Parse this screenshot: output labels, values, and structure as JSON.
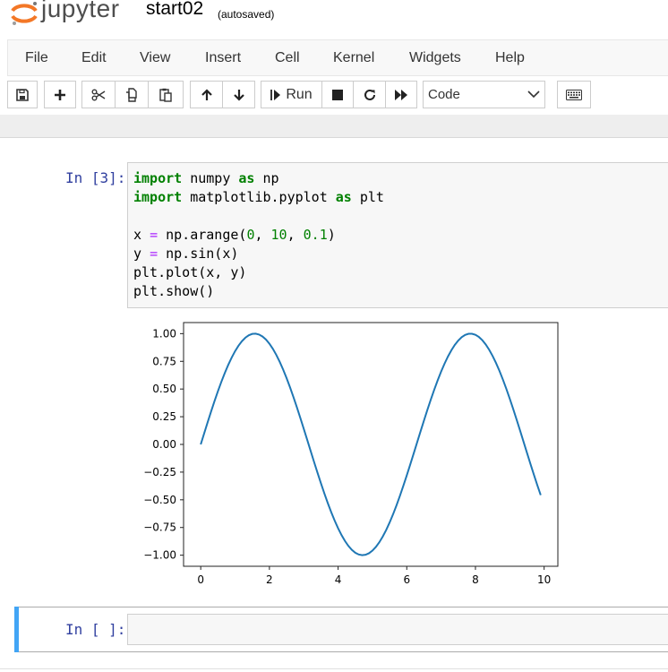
{
  "header": {
    "logo_text": "jupyter",
    "notebook_name": "start02",
    "autosave_status": "(autosaved)"
  },
  "menu": [
    "File",
    "Edit",
    "View",
    "Insert",
    "Cell",
    "Kernel",
    "Widgets",
    "Help"
  ],
  "toolbar": {
    "run_label": "Run",
    "cell_type": "Code",
    "icons": [
      "save-icon",
      "plus-icon",
      "cut-icon",
      "copy-icon",
      "paste-icon",
      "arrow-up-icon",
      "arrow-down-icon",
      "run-icon",
      "stop-icon",
      "restart-icon",
      "fast-forward-icon",
      "keyboard-icon"
    ]
  },
  "cells": [
    {
      "prompt": "In [3]:",
      "code": [
        "import numpy as np",
        "import matplotlib.pyplot as plt",
        "",
        "x = np.arange(0, 10, 0.1)",
        "y = np.sin(x)",
        "plt.plot(x, y)",
        "plt.show()"
      ]
    },
    {
      "prompt": "In [ ]:",
      "code": []
    }
  ],
  "chart_data": {
    "type": "line",
    "series": [
      {
        "function": "sin(x)",
        "x_start": 0,
        "x_stop": 10,
        "x_step": 0.1,
        "color": "#1f77b4"
      }
    ],
    "xlim": [
      -0.5,
      10.4
    ],
    "ylim": [
      -1.1,
      1.1
    ],
    "xticks": [
      0,
      2,
      4,
      6,
      8,
      10
    ],
    "xtick_labels": [
      "0",
      "2",
      "4",
      "6",
      "8",
      "10"
    ],
    "yticks": [
      1.0,
      0.75,
      0.5,
      0.25,
      0.0,
      -0.25,
      -0.5,
      -0.75,
      -1.0
    ],
    "ytick_labels": [
      "1.00",
      "0.75",
      "0.50",
      "0.25",
      "0.00",
      "−0.25",
      "−0.50",
      "−0.75",
      "−1.00"
    ],
    "grid": false,
    "title": "",
    "xlabel": "",
    "ylabel": ""
  },
  "colors": {
    "prompt": "#303f9f",
    "selected_cell": "#42a5f5",
    "logo_orange": "#f37726"
  }
}
